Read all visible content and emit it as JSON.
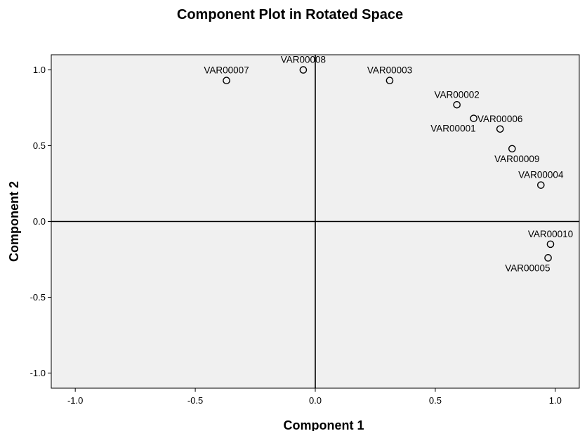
{
  "chart_data": {
    "type": "scatter",
    "title": "Component Plot in Rotated Space",
    "xlabel": "Component 1",
    "ylabel": "Component 2",
    "xlim": [
      -1.1,
      1.1
    ],
    "ylim": [
      -1.1,
      1.1
    ],
    "xticks": [
      -1.0,
      -0.5,
      0.0,
      0.5,
      1.0
    ],
    "xtick_labels": [
      "-1.0",
      "-0.5",
      "0.0",
      "0.5",
      "1.0"
    ],
    "yticks": [
      1.0,
      0.5,
      0.0,
      -0.5,
      -1.0
    ],
    "ytick_labels": [
      "1.0",
      "0.5",
      "0.0",
      "-0.5",
      "-1.0"
    ],
    "reference_lines": {
      "x": 0,
      "y": 0
    },
    "grid": false,
    "plot_background": "#f0f0f0",
    "marker": "open-circle",
    "points": [
      {
        "label": "VAR00001",
        "x": 0.66,
        "y": 0.68,
        "label_position": "below-left"
      },
      {
        "label": "VAR00002",
        "x": 0.59,
        "y": 0.77,
        "label_position": "above"
      },
      {
        "label": "VAR00003",
        "x": 0.31,
        "y": 0.93,
        "label_position": "above"
      },
      {
        "label": "VAR00004",
        "x": 0.94,
        "y": 0.24,
        "label_position": "above"
      },
      {
        "label": "VAR00005",
        "x": 0.97,
        "y": -0.24,
        "label_position": "below-left"
      },
      {
        "label": "VAR00006",
        "x": 0.77,
        "y": 0.61,
        "label_position": "above"
      },
      {
        "label": "VAR00007",
        "x": -0.37,
        "y": 0.93,
        "label_position": "above"
      },
      {
        "label": "VAR00008",
        "x": -0.05,
        "y": 1.0,
        "label_position": "above"
      },
      {
        "label": "VAR00009",
        "x": 0.82,
        "y": 0.48,
        "label_position": "below"
      },
      {
        "label": "VAR00010",
        "x": 0.98,
        "y": -0.15,
        "label_position": "above"
      }
    ]
  }
}
